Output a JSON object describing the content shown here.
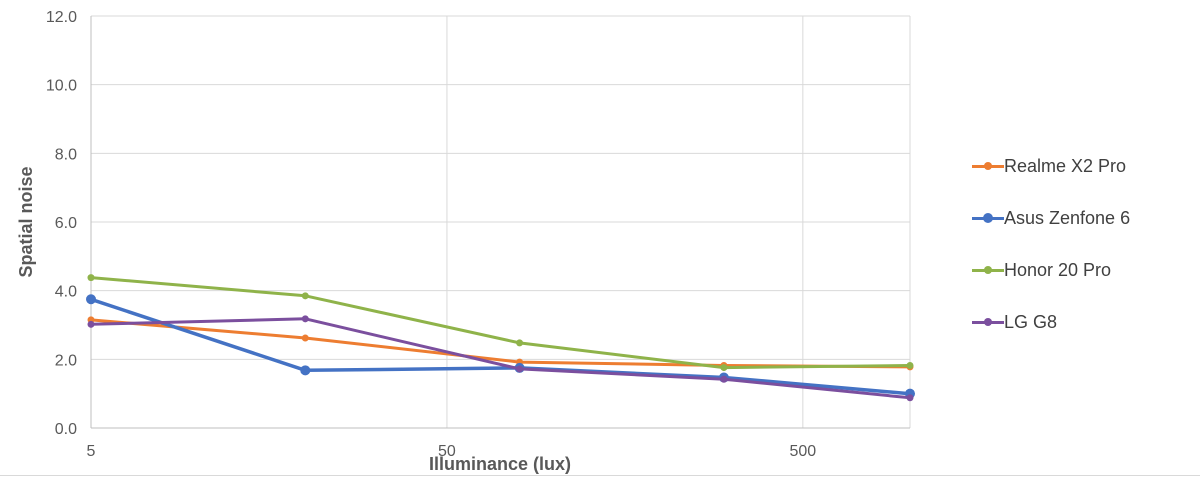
{
  "chart_data": {
    "type": "line",
    "xlabel": "Illuminance (lux)",
    "ylabel": "Spatial noise",
    "x_scale": "log",
    "xlim": [
      5,
      1000
    ],
    "ylim": [
      0,
      12
    ],
    "y_ticks": [
      "0.0",
      "2.0",
      "4.0",
      "6.0",
      "8.0",
      "10.0",
      "12.0"
    ],
    "x_ticks": [
      "5",
      "50",
      "500"
    ],
    "x_tick_values": [
      5,
      50,
      500
    ],
    "grid": "on",
    "legend_position": "right",
    "series": [
      {
        "name": "Realme X2 Pro",
        "color": "#ED7D31",
        "x": [
          5,
          20,
          80,
          300,
          1000
        ],
        "y": [
          3.15,
          2.62,
          1.92,
          1.82,
          1.78
        ]
      },
      {
        "name": "Asus Zenfone 6",
        "color": "#4472C4",
        "x": [
          5,
          20,
          80,
          300,
          1000
        ],
        "y": [
          3.75,
          1.68,
          1.75,
          1.47,
          1.0
        ]
      },
      {
        "name": "Honor 20 Pro",
        "color": "#8FB34A",
        "x": [
          5,
          20,
          80,
          300,
          1000
        ],
        "y": [
          4.38,
          3.85,
          2.48,
          1.76,
          1.82
        ]
      },
      {
        "name": "LG G8",
        "color": "#7B4F9E",
        "x": [
          5,
          20,
          80,
          300,
          1000
        ],
        "y": [
          3.02,
          3.18,
          1.72,
          1.42,
          0.88
        ]
      }
    ]
  }
}
